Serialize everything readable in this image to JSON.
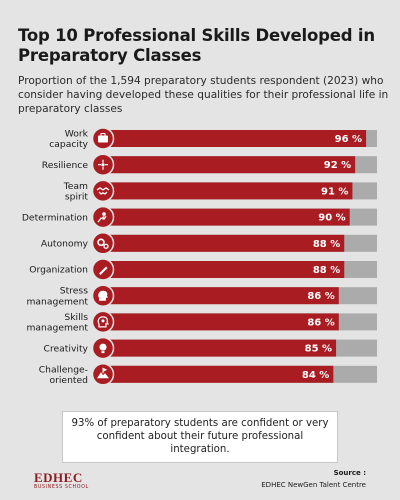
{
  "title": "Top 10 Professional Skills Developed in Preparatory Classes",
  "subtitle": "Proportion of the 1,594 preparatory students respondent (2023) who consider having developed these qualities for their professional life in preparatory classes",
  "colors": {
    "bar": "#a91d22",
    "track": "#ababab",
    "icon_bg": "#a91d22",
    "text": "#1a1a1a"
  },
  "chart_data": {
    "type": "bar",
    "orientation": "horizontal",
    "categories": [
      "Work\ncapacity",
      "Resilience",
      "Team\nspirit",
      "Determination",
      "Autonomy",
      "Organization",
      "Stress\nmanagement",
      "Skills\nmanagement",
      "Creativity",
      "Challenge-\noriented"
    ],
    "values": [
      96,
      92,
      91,
      90,
      88,
      88,
      86,
      86,
      85,
      84
    ],
    "data_labels": [
      "96 %",
      "92 %",
      "91 %",
      "90 %",
      "88 %",
      "88 %",
      "86 %",
      "86 %",
      "85 %",
      "84 %"
    ],
    "icons": [
      "briefcase-icon",
      "arrows-spread-icon",
      "handshake-icon",
      "climbing-person-icon",
      "gears-icon",
      "pen-icon",
      "head-brain-icon",
      "head-gears-icon",
      "lightbulb-icon",
      "mountain-flag-icon"
    ],
    "xlim": [
      0,
      100
    ],
    "grid": false,
    "legend": "none"
  },
  "note": "93% of preparatory students are confident or very confident about their future professional integration.",
  "footer": {
    "logo": "EDHEC",
    "logo_sub": "BUSINESS SCHOOL",
    "source_label": "Source :",
    "source_text": "EDHEC NewGen Talent Centre"
  }
}
